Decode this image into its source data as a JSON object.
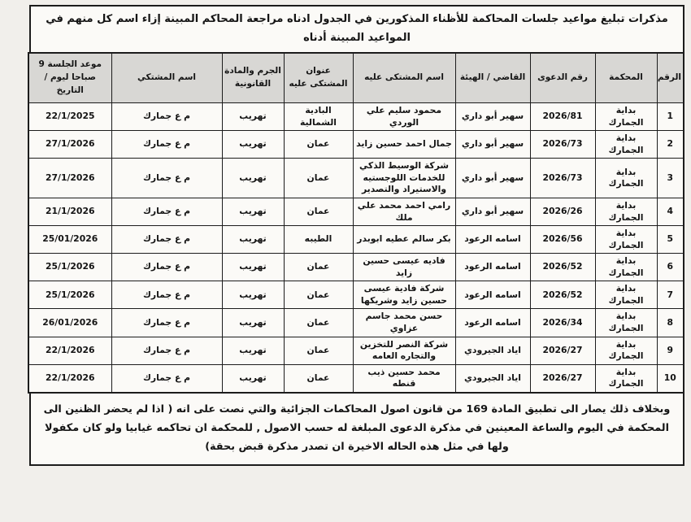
{
  "page": {
    "title": "مذكرات تبليغ مواعيد جلسات المحاكمة للأظناء المذكورين في الجدول ادناه مراجعة المحاكم المبينة إزاء اسم كل منهم في المواعيد المبينة أدناه",
    "footer": "وبخلاف ذلك يصار الى تطبيق المادة 169 من قانون اصول المحاكمات الجزائية والتي نصت على انه ( اذا لم يحضر الظنين الى المحكمة في اليوم والساعة المعينين في مذكرة الدعوى المبلغة له حسب الاصول , للمحكمة ان تحاكمه غيابيا ولو كان مكفولا ولها في مثل هذه الحاله الاخيرة ان تصدر مذكرة قبض بحقة)"
  },
  "table": {
    "headers": [
      "الرقم",
      "المحكمة",
      "رقم الدعوى",
      "القاضي / الهيئة",
      "اسم المشتكى عليه",
      "عنوان المشتكى عليه",
      "الجرم والمادة القانونية",
      "اسم المشتكي",
      "موعد الجلسة 9 صباحا ليوم / التاريخ"
    ],
    "rows": [
      [
        "1",
        "بداية الجمارك",
        "2026/81",
        "سهير أبو داري",
        "محمود سليم علي الوردي",
        "البادية الشمالية",
        "تهريب",
        "م ع جمارك",
        "22/1/2025"
      ],
      [
        "2",
        "بداية الجمارك",
        "2026/73",
        "سهير أبو داري",
        "جمال احمد حسين زايد",
        "عمان",
        "تهريب",
        "م ع جمارك",
        "27/1/2026"
      ],
      [
        "3",
        "بداية الجمارك",
        "2026/73",
        "سهير أبو داري",
        "شركة الوسيط الذكي للخدمات اللوجستيه والاستيراد والتصدير",
        "عمان",
        "تهريب",
        "م ع جمارك",
        "27/1/2026"
      ],
      [
        "4",
        "بداية الجمارك",
        "2026/26",
        "سهير أبو داري",
        "رامي احمد محمد علي ملك",
        "عمان",
        "تهريب",
        "م ع جمارك",
        "21/1/2026"
      ],
      [
        "5",
        "بداية الجمارك",
        "2026/56",
        "اسامه الرعود",
        "بكر سالم عطيه ابوبدر",
        "الطيبه",
        "تهريب",
        "م ع جمارك",
        "25/01/2026"
      ],
      [
        "6",
        "بداية الجمارك",
        "2026/52",
        "اسامه الرعود",
        "فاديه عيسى حسين زايد",
        "عمان",
        "تهريب",
        "م ع جمارك",
        "25/1/2026"
      ],
      [
        "7",
        "بداية الجمارك",
        "2026/52",
        "اسامه الرعود",
        "شركة فادية عيسى حسين زايد وشريكها",
        "عمان",
        "تهريب",
        "م ع جمارك",
        "25/1/2026"
      ],
      [
        "8",
        "بداية الجمارك",
        "2026/34",
        "اسامه الرعود",
        "حسن محمد جاسم عزاوي",
        "عمان",
        "تهريب",
        "م ع جمارك",
        "26/01/2026"
      ],
      [
        "9",
        "بداية الجمارك",
        "2026/27",
        "اياد الجيرودي",
        "شركة النصر للتخزين والتجاره العامه",
        "عمان",
        "تهريب",
        "م ع جمارك",
        "22/1/2026"
      ],
      [
        "10",
        "بداية الجمارك",
        "2026/27",
        "اياد الجيرودي",
        "محمد حسين ذيب قنطه",
        "عمان",
        "تهريب",
        "م ع جمارك",
        "22/1/2026"
      ]
    ]
  },
  "colors": {
    "paper": "#f1efeb",
    "cell_bg": "#fbfaf7",
    "header_bg": "#d8d7d4",
    "border": "#1c1c1c",
    "ink": "#141414"
  }
}
